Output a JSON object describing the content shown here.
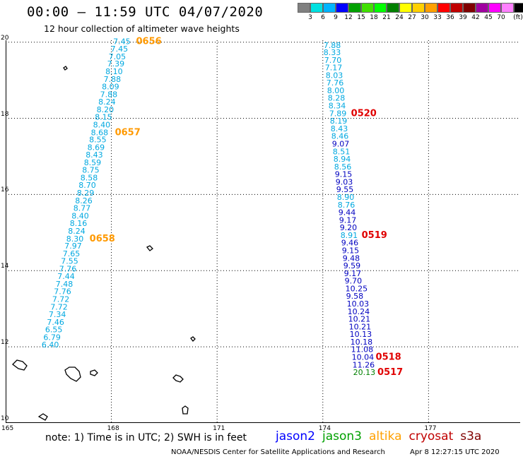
{
  "header": {
    "title": "00:00 – 11:59 UTC 04/07/2020",
    "subtitle": "12 hour collection of altimeter wave heights"
  },
  "legend": {
    "unit": "(ft)",
    "colors": [
      "#808080",
      "#00e0e0",
      "#00b4ff",
      "#0000ff",
      "#00a000",
      "#40e000",
      "#00ff00",
      "#008000",
      "#ffff00",
      "#ffd000",
      "#ffa000",
      "#ff0000",
      "#c00000",
      "#800000",
      "#a000a0",
      "#ff00ff",
      "#ff80ff",
      "#000000"
    ],
    "labels": [
      "3",
      "6",
      "9",
      "12",
      "15",
      "18",
      "21",
      "24",
      "27",
      "30",
      "33",
      "36",
      "39",
      "42",
      "45",
      "70"
    ]
  },
  "axes": {
    "x_ticks": [
      "165",
      "168",
      "171",
      "174",
      "177"
    ],
    "y_ticks": [
      "20",
      "18",
      "16",
      "14",
      "12",
      "10"
    ]
  },
  "tracks": [
    {
      "satellite": "altika",
      "color": "#00a0e0",
      "points": [
        {
          "lon": 168.05,
          "lat": 19.95,
          "v": "7.45"
        },
        {
          "lon": 167.98,
          "lat": 19.75,
          "v": "7.45"
        },
        {
          "lon": 167.92,
          "lat": 19.55,
          "v": "7.05"
        },
        {
          "lon": 167.88,
          "lat": 19.36,
          "v": "7.39"
        },
        {
          "lon": 167.83,
          "lat": 19.16,
          "v": "8.10"
        },
        {
          "lon": 167.78,
          "lat": 18.96,
          "v": "7.88"
        },
        {
          "lon": 167.73,
          "lat": 18.76,
          "v": "8.09"
        },
        {
          "lon": 167.68,
          "lat": 18.56,
          "v": "7.88"
        },
        {
          "lon": 167.63,
          "lat": 18.36,
          "v": "8.24"
        },
        {
          "lon": 167.58,
          "lat": 18.16,
          "v": "8.20"
        },
        {
          "lon": 167.53,
          "lat": 17.96,
          "v": "8.15"
        },
        {
          "lon": 167.48,
          "lat": 17.76,
          "v": "8.40"
        },
        {
          "lon": 167.42,
          "lat": 17.56,
          "v": "8.68"
        },
        {
          "lon": 167.37,
          "lat": 17.37,
          "v": "8.55"
        },
        {
          "lon": 167.32,
          "lat": 17.17,
          "v": "8.69"
        },
        {
          "lon": 167.27,
          "lat": 16.97,
          "v": "8.43"
        },
        {
          "lon": 167.22,
          "lat": 16.77,
          "v": "8.59"
        },
        {
          "lon": 167.17,
          "lat": 16.57,
          "v": "8.75"
        },
        {
          "lon": 167.12,
          "lat": 16.37,
          "v": "8.58"
        },
        {
          "lon": 167.07,
          "lat": 16.17,
          "v": "8.70"
        },
        {
          "lon": 167.02,
          "lat": 15.97,
          "v": "8.29"
        },
        {
          "lon": 166.97,
          "lat": 15.77,
          "v": "8.26"
        },
        {
          "lon": 166.92,
          "lat": 15.57,
          "v": "8.77"
        },
        {
          "lon": 166.87,
          "lat": 15.37,
          "v": "8.40"
        },
        {
          "lon": 166.82,
          "lat": 15.17,
          "v": "8.16"
        },
        {
          "lon": 166.77,
          "lat": 14.97,
          "v": "8.24"
        },
        {
          "lon": 166.72,
          "lat": 14.77,
          "v": "8.30"
        },
        {
          "lon": 166.67,
          "lat": 14.58,
          "v": "7.97"
        },
        {
          "lon": 166.62,
          "lat": 14.38,
          "v": "7.65"
        },
        {
          "lon": 166.57,
          "lat": 14.18,
          "v": "7.55"
        },
        {
          "lon": 166.52,
          "lat": 13.98,
          "v": "7.76"
        },
        {
          "lon": 166.47,
          "lat": 13.78,
          "v": "7.44"
        },
        {
          "lon": 166.42,
          "lat": 13.58,
          "v": "7.48"
        },
        {
          "lon": 166.37,
          "lat": 13.38,
          "v": "7.76"
        },
        {
          "lon": 166.32,
          "lat": 13.18,
          "v": "7.72"
        },
        {
          "lon": 166.27,
          "lat": 12.98,
          "v": "7.72"
        },
        {
          "lon": 166.22,
          "lat": 12.78,
          "v": "7.34"
        },
        {
          "lon": 166.17,
          "lat": 12.58,
          "v": "7.46"
        },
        {
          "lon": 166.12,
          "lat": 12.38,
          "v": "6.55"
        },
        {
          "lon": 166.07,
          "lat": 12.18,
          "v": "6.79"
        },
        {
          "lon": 166.02,
          "lat": 11.98,
          "v": "6.40"
        }
      ],
      "times": [
        {
          "lon": 168.7,
          "lat": 19.95,
          "t": "0656"
        },
        {
          "lon": 168.1,
          "lat": 17.56,
          "t": "0657"
        },
        {
          "lon": 167.38,
          "lat": 14.77,
          "t": "0658"
        }
      ],
      "time_color": "#ff9900"
    },
    {
      "satellite": "jason2",
      "color": "#0000a0",
      "points": [
        {
          "lon": 174.02,
          "lat": 19.85,
          "v": "7.88"
        },
        {
          "lon": 174.02,
          "lat": 19.66,
          "v": "8.33"
        },
        {
          "lon": 174.04,
          "lat": 19.46,
          "v": "7.70"
        },
        {
          "lon": 174.06,
          "lat": 19.26,
          "v": "7.17"
        },
        {
          "lon": 174.08,
          "lat": 19.06,
          "v": "8.03"
        },
        {
          "lon": 174.1,
          "lat": 18.86,
          "v": "7.76"
        },
        {
          "lon": 174.12,
          "lat": 18.66,
          "v": "8.00"
        },
        {
          "lon": 174.14,
          "lat": 18.46,
          "v": "8.28"
        },
        {
          "lon": 174.16,
          "lat": 18.26,
          "v": "8.34"
        },
        {
          "lon": 174.18,
          "lat": 18.06,
          "v": "7.89"
        },
        {
          "lon": 174.2,
          "lat": 17.86,
          "v": "8.19"
        },
        {
          "lon": 174.22,
          "lat": 17.66,
          "v": "8.43"
        },
        {
          "lon": 174.24,
          "lat": 17.46,
          "v": "8.46"
        },
        {
          "lon": 174.26,
          "lat": 17.26,
          "v": "9.07"
        },
        {
          "lon": 174.28,
          "lat": 17.06,
          "v": "8.51"
        },
        {
          "lon": 174.3,
          "lat": 16.86,
          "v": "8.94"
        },
        {
          "lon": 174.32,
          "lat": 16.66,
          "v": "8.56"
        },
        {
          "lon": 174.34,
          "lat": 16.46,
          "v": "9.15"
        },
        {
          "lon": 174.36,
          "lat": 16.26,
          "v": "9.03"
        },
        {
          "lon": 174.38,
          "lat": 16.06,
          "v": "9.55"
        },
        {
          "lon": 174.4,
          "lat": 15.86,
          "v": "8.90"
        },
        {
          "lon": 174.42,
          "lat": 15.66,
          "v": "8.76"
        },
        {
          "lon": 174.44,
          "lat": 15.46,
          "v": "9.44"
        },
        {
          "lon": 174.46,
          "lat": 15.26,
          "v": "9.17"
        },
        {
          "lon": 174.48,
          "lat": 15.06,
          "v": "9.20"
        },
        {
          "lon": 174.5,
          "lat": 14.86,
          "v": "8.91"
        },
        {
          "lon": 174.52,
          "lat": 14.66,
          "v": "9.46"
        },
        {
          "lon": 174.54,
          "lat": 14.46,
          "v": "9.15"
        },
        {
          "lon": 174.56,
          "lat": 14.26,
          "v": "9.48"
        },
        {
          "lon": 174.58,
          "lat": 14.06,
          "v": "9.59"
        },
        {
          "lon": 174.6,
          "lat": 13.86,
          "v": "9.17"
        },
        {
          "lon": 174.62,
          "lat": 13.66,
          "v": "9.70"
        },
        {
          "lon": 174.64,
          "lat": 13.46,
          "v": "10.25"
        },
        {
          "lon": 174.66,
          "lat": 13.26,
          "v": "9.58"
        },
        {
          "lon": 174.68,
          "lat": 13.06,
          "v": "10.03"
        },
        {
          "lon": 174.7,
          "lat": 12.86,
          "v": "10.24"
        },
        {
          "lon": 174.72,
          "lat": 12.66,
          "v": "10.21"
        },
        {
          "lon": 174.74,
          "lat": 12.46,
          "v": "10.21"
        },
        {
          "lon": 174.76,
          "lat": 12.26,
          "v": "10.13"
        },
        {
          "lon": 174.78,
          "lat": 12.06,
          "v": "10.18"
        },
        {
          "lon": 174.8,
          "lat": 11.86,
          "v": "11.08"
        },
        {
          "lon": 174.82,
          "lat": 11.66,
          "v": "10.04"
        },
        {
          "lon": 174.84,
          "lat": 11.46,
          "v": "11.26"
        },
        {
          "lon": 174.86,
          "lat": 11.26,
          "v": "20.13"
        }
      ],
      "times": [
        {
          "lon": 174.8,
          "lat": 18.06,
          "t": "0520"
        },
        {
          "lon": 175.1,
          "lat": 14.86,
          "t": "0519"
        },
        {
          "lon": 175.5,
          "lat": 11.66,
          "t": "0518"
        },
        {
          "lon": 175.55,
          "lat": 11.26,
          "t": "0517"
        }
      ],
      "time_color": "#e00000"
    }
  ],
  "footer": {
    "note": "note:  1) Time is in UTC;  2) SWH is in feet",
    "satellites": [
      {
        "name": "jason2",
        "color": "#0000ff"
      },
      {
        "name": "jason3",
        "color": "#00a000"
      },
      {
        "name": "altika",
        "color": "#ffa000"
      },
      {
        "name": "cryosat",
        "color": "#c00000"
      },
      {
        "name": "s3a",
        "color": "#800000"
      }
    ],
    "credit": "NOAA/NESDIS Center for Satellite Applications and Research",
    "credit_date": "Apr  8 12:27:15 UTC 2020"
  }
}
